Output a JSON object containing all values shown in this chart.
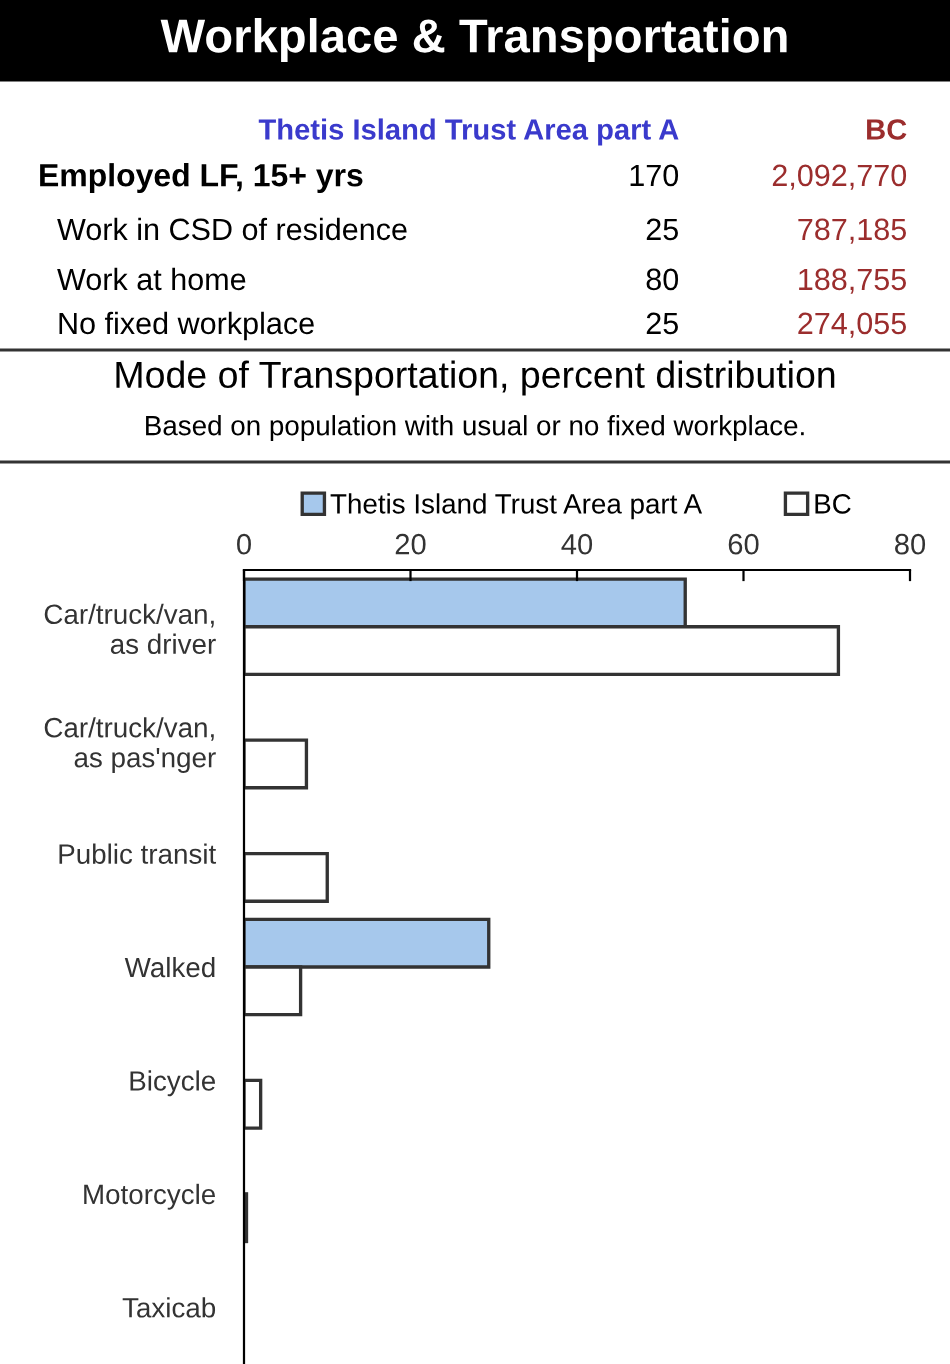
{
  "chart_data": {
    "type": "bar",
    "orientation": "horizontal",
    "title": "Mode of Transportation, percent distribution",
    "subtitle": "Based on population with usual or no fixed workplace.",
    "annotations": [
      "Workplace & Transportation",
      "Thetis Island Trust Area part A",
      "BC",
      "Employed LF, 15+ yrs",
      "170",
      "2,092,770",
      "Work in CSD of residence",
      "25",
      "787,185",
      "Work at home",
      "80",
      "188,755",
      "No fixed workplace",
      "25",
      "274,055"
    ],
    "categories": [
      "Car/truck/van,\nas driver",
      "Car/truck/van,\nas pas'nger",
      "Public transit",
      "Walked",
      "Bicycle",
      "Motorcycle",
      "Taxicab"
    ],
    "series": [
      {
        "name": "Thetis Island Trust Area part A",
        "color": "#a6c8ec",
        "values": [
          53.0,
          0,
          0,
          29.4,
          0,
          0,
          0
        ]
      },
      {
        "name": "BC",
        "color": "#ffffff",
        "values": [
          71.4,
          7.5,
          10.0,
          6.8,
          2.0,
          0.3,
          0
        ]
      }
    ],
    "xlim": [
      0,
      80
    ],
    "xticks": [
      0,
      20,
      40,
      60,
      80
    ],
    "grid": false,
    "legend": "top"
  }
}
